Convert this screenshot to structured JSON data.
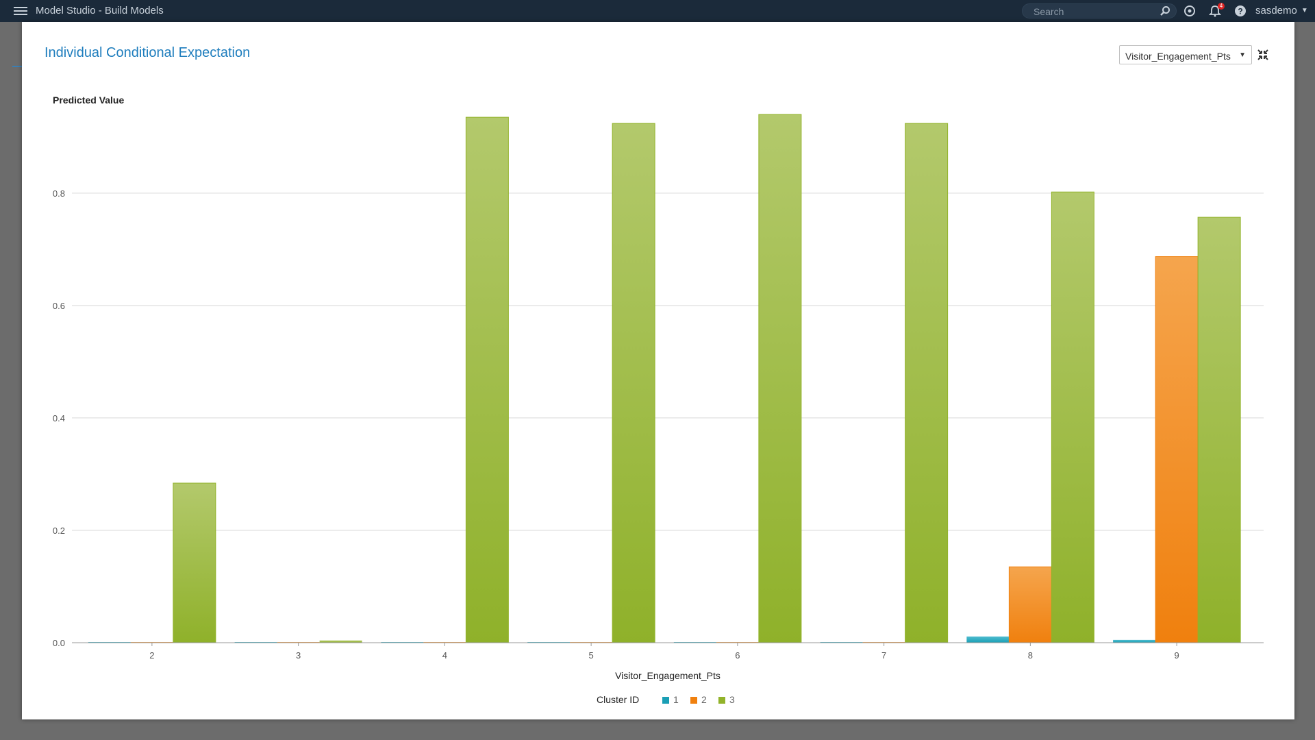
{
  "app": {
    "title": "Model Studio - Build Models",
    "search_placeholder": "Search",
    "notification_count": "4",
    "user_name": "sasdemo"
  },
  "modal": {
    "title": "Individual Conditional Expectation",
    "variable_select_value": "Visitor_Engagement_Pts"
  },
  "chart_data": {
    "type": "bar",
    "ylabel": "Predicted Value",
    "xlabel": "Visitor_Engagement_Pts",
    "ylim": [
      0,
      0.94
    ],
    "yticks": [
      "0.0",
      "0.2",
      "0.4",
      "0.6",
      "0.8"
    ],
    "ytick_values": [
      0,
      0.2,
      0.4,
      0.6,
      0.8
    ],
    "grid": true,
    "legend_title": "Cluster ID",
    "legend_position": "bottom",
    "categories": [
      "2",
      "3",
      "4",
      "5",
      "6",
      "7",
      "8",
      "9"
    ],
    "series": [
      {
        "name": "1",
        "color": "#1a9fb5",
        "values": [
          0,
          0,
          0,
          0,
          0,
          0,
          0.011,
          0.005
        ]
      },
      {
        "name": "2",
        "color": "#f0800e",
        "values": [
          0,
          0,
          0,
          0,
          0,
          0,
          0.135,
          0.687
        ]
      },
      {
        "name": "3",
        "color": "#92b32a",
        "values": [
          0.284,
          0.004,
          0.935,
          0.924,
          0.94,
          0.924,
          0.802,
          0.757
        ]
      }
    ]
  }
}
